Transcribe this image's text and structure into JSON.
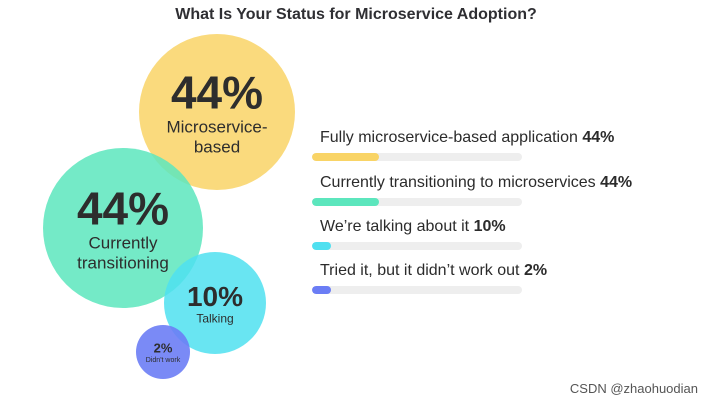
{
  "title": "What Is Your Status for Microservice Adoption?",
  "chart_data": {
    "type": "bubble",
    "categories": [
      "Fully microservice-based application",
      "Currently transitioning to microservices",
      "We're talking about it",
      "Tried it, but it didn't work out"
    ],
    "values": [
      44,
      44,
      10,
      2
    ],
    "value_labels": [
      "44%",
      "44%",
      "10%",
      "2%"
    ],
    "bubble_labels": [
      [
        "Microservice-",
        "based"
      ],
      [
        "Currently",
        "transitioning"
      ],
      [
        "Talking"
      ],
      [
        "Didn't work"
      ]
    ],
    "colors": [
      "#f9d466",
      "#5ce6bd",
      "#4fe0f0",
      "#6b7df5"
    ],
    "unit": "%"
  },
  "legend_rows": [
    {
      "label": "Fully microservice-based application",
      "value": "44%"
    },
    {
      "label": "Currently transitioning to microservices",
      "value": "44%"
    },
    {
      "label": "We’re talking about it",
      "value": "10%"
    },
    {
      "label": "Tried it, but it didn’t work out",
      "value": "2%"
    }
  ],
  "watermark": "CSDN @zhaohuodian"
}
